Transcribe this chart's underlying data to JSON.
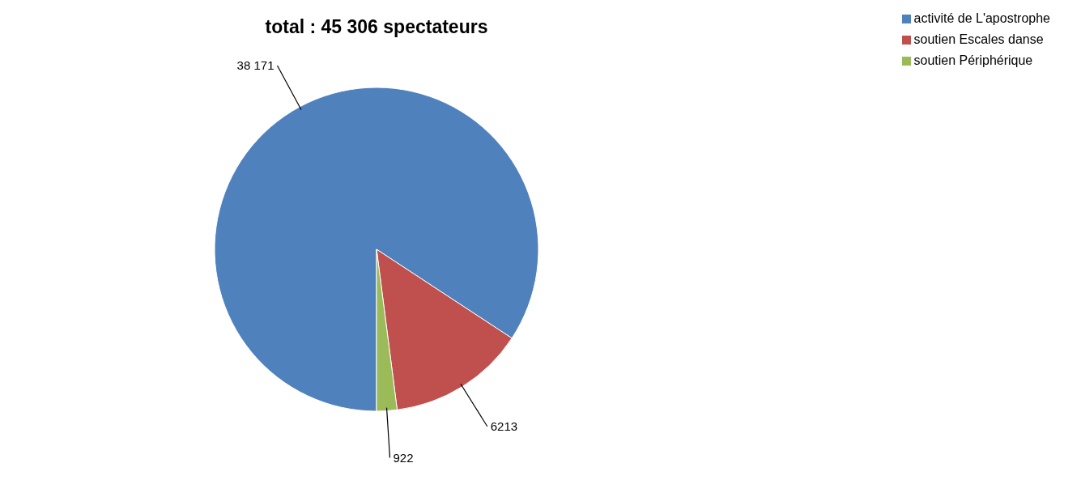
{
  "chart_data": {
    "type": "pie",
    "title": "total : 45 306 spectateurs",
    "categories": [
      "activité de L'apostrophe",
      "soutien Escales danse",
      "soutien Périphérique"
    ],
    "values": [
      38171,
      6213,
      922
    ],
    "colors": [
      "#4f81bd",
      "#c0504d",
      "#9bbb59"
    ],
    "value_labels": [
      "38 171",
      "6213",
      "922"
    ],
    "legend": "top right"
  }
}
